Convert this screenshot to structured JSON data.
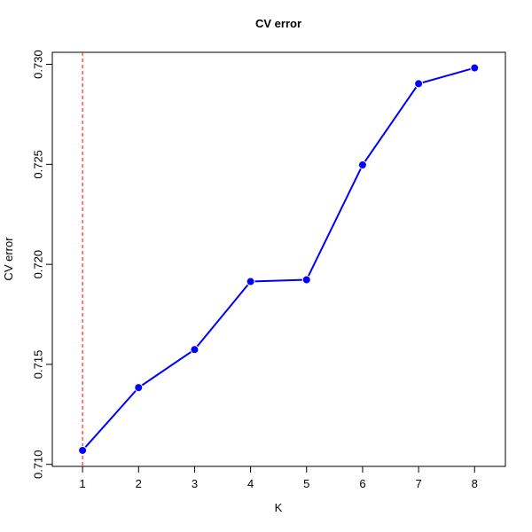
{
  "chart_data": {
    "type": "line",
    "title": "CV error",
    "x_label": "K",
    "y_label": "CV error",
    "x": [
      1,
      2,
      3,
      4,
      5,
      6,
      7,
      8
    ],
    "series": [
      {
        "color": "#0000ff",
        "values": [
          0.7107,
          0.71384,
          0.71574,
          0.71914,
          0.71923,
          0.72497,
          0.72903,
          0.72982
        ]
      }
    ],
    "xlim": [
      0.46,
      8.55
    ],
    "ylim": [
      0.7099,
      0.7306
    ],
    "xticks": [
      1,
      2,
      3,
      4,
      5,
      6,
      7,
      8
    ],
    "yticks": [
      {
        "value": 0.71,
        "label": "0.710"
      },
      {
        "value": 0.715,
        "label": "0.715"
      },
      {
        "value": 0.72,
        "label": "0.720"
      },
      {
        "value": 0.725,
        "label": "0.725"
      },
      {
        "value": 0.73,
        "label": "0.730"
      }
    ],
    "vline": {
      "x": 1,
      "color": "#ff0000"
    }
  }
}
